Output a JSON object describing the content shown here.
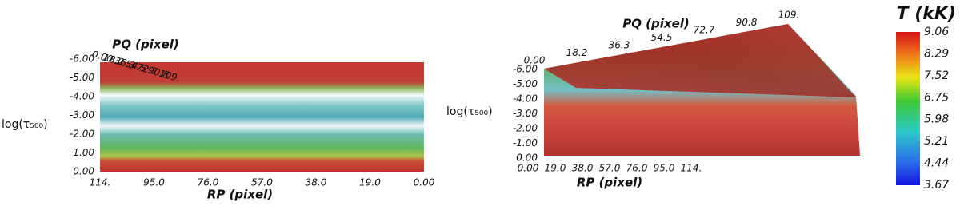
{
  "left_panel": {
    "y_axis_label": "log(τ₅₀₀)",
    "y_ticks": [
      "-6.00",
      "-5.00",
      "-4.00",
      "-3.00",
      "-2.00",
      "-1.00",
      "0.00"
    ],
    "x_axis_label": "RP (pixel)",
    "x_ticks": [
      "114.",
      "95.0",
      "76.0",
      "57.0",
      "38.0",
      "19.0",
      "0.00"
    ],
    "depth_axis_label": "PQ (pixel)",
    "depth_ticks": [
      "0.00",
      "18.2",
      "36.3",
      "54.5",
      "72.7",
      "90.8",
      "109."
    ]
  },
  "right_panel": {
    "y_axis_label": "log(τ₅₀₀)",
    "y_ticks": [
      "-6.00",
      "-5.00",
      "-4.00",
      "-3.00",
      "-2.00",
      "-1.00",
      "0.00"
    ],
    "x_axis_label": "RP (pixel)",
    "x_ticks": [
      "0.00",
      "19.0",
      "38.0",
      "57.0",
      "76.0",
      "95.0",
      "114."
    ],
    "depth_axis_label": "PQ (pixel)",
    "depth_ticks": [
      "0.00",
      "18.2",
      "36.3",
      "54.5",
      "72.7",
      "90.8",
      "109."
    ]
  },
  "colorbar": {
    "title": "T (kK)",
    "ticks": [
      "9.06",
      "8.29",
      "7.52",
      "6.75",
      "5.98",
      "5.21",
      "4.44",
      "3.67"
    ]
  }
}
